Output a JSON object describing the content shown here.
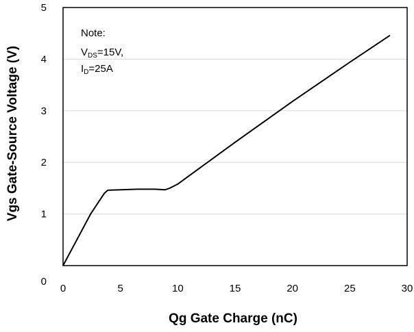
{
  "chart_data": {
    "type": "line",
    "title": "",
    "xlabel": "Qg Gate Charge (nC)",
    "ylabel": "Vgs Gate-Source Voltage (V)",
    "xlim": [
      0,
      30
    ],
    "ylim": [
      0,
      5
    ],
    "xticks": [
      "0",
      "5",
      "10",
      "15",
      "20",
      "25",
      "30"
    ],
    "yticks": [
      "0",
      "1",
      "2",
      "3",
      "4",
      "5"
    ],
    "grid": true,
    "note": {
      "title": "Note:",
      "vds_main": "V",
      "vds_sub": "DS",
      "vds_value": "=15V,",
      "id_main": "I",
      "id_sub": "D",
      "id_value": "=25A"
    },
    "series": [
      {
        "x": [
          0,
          1.2,
          2.4,
          3.6,
          3.9,
          5.0,
          6.5,
          8.0,
          8.9,
          9.3,
          10.0,
          15.0,
          20.0,
          25.0,
          28.5
        ],
        "y": [
          0,
          0.5,
          1.0,
          1.4,
          1.46,
          1.47,
          1.48,
          1.48,
          1.47,
          1.5,
          1.58,
          2.39,
          3.18,
          3.94,
          4.46
        ]
      }
    ]
  }
}
